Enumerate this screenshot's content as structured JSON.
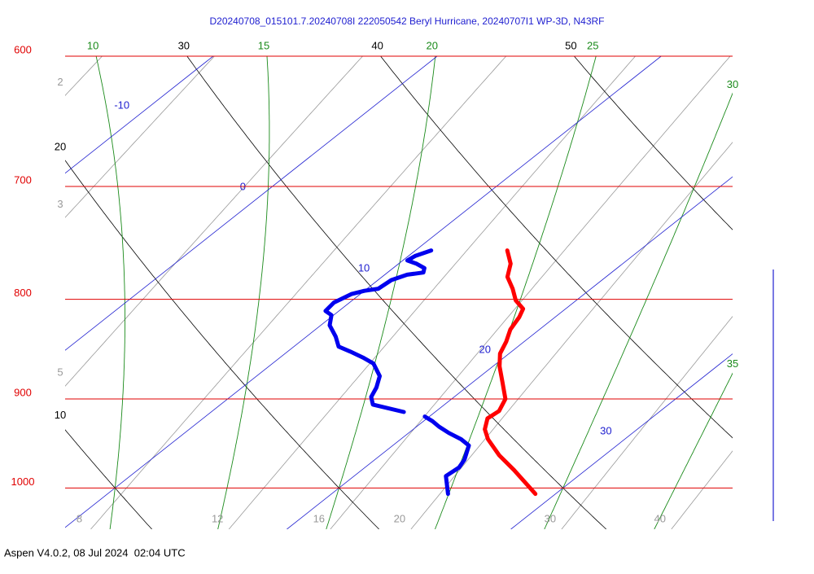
{
  "chart_data": {
    "type": "skewt",
    "title": "D20240708_015101.7.20240708I 222050542 Beryl Hurricane, 20240707I1 WP-3D, N43RF",
    "footer": "Aspen V4.0.2, 08 Jul 2024  02:04 UTC",
    "ylim": [
      1050,
      600
    ],
    "yticks": [
      600,
      700,
      800,
      900,
      1000
    ],
    "log_y": true,
    "isobar_color": "#e00000",
    "xlim": [
      10.1,
      39.9
    ],
    "isotherms": [
      -10,
      0,
      10,
      20,
      30
    ],
    "isotherm_color": "#2020d0",
    "dry_adiabats": [
      10,
      20,
      30,
      40,
      50
    ],
    "dry_adiabat_color": "#000000",
    "moist_adiabats": [
      10,
      15,
      20,
      25,
      30,
      35
    ],
    "moist_adiabat_color": "#1a8a1a",
    "mixing_ratios": [
      2,
      3,
      5,
      8,
      12,
      16,
      20,
      30,
      40
    ],
    "mixing_ratio_color": "#999999",
    "series": [
      {
        "color": "#ff0000",
        "x": [
          29.1,
          26.8,
          25.3,
          23.9,
          23.2,
          22.7,
          22.8,
          22.4,
          21.3,
          20.3,
          19.6,
          19.2,
          18.7,
          18.4,
          18.1,
          17.3,
          16.5,
          15.6,
          15.0,
          14.1
        ],
        "y": [
          1007,
          979,
          962,
          944,
          933,
          921,
          913,
          900,
          882,
          866,
          853,
          841,
          829,
          817,
          809,
          801,
          790,
          779,
          767,
          755
        ]
      },
      {
        "color": "#0000ee",
        "x": [
          25.2,
          24.1,
          24.2,
          24.0,
          23.4,
          22.7,
          21.8,
          21.0,
          20.4,
          19.8,
          null,
          18.6,
          16.8,
          16.3,
          16.0,
          15.5,
          14.5,
          13.7,
          12.8,
          12.0,
          11.3,
          10.4,
          9.9,
          9.4,
          9.3,
          9.6,
          10.0,
          10.5,
          10.6,
          11.0,
          11.6,
          11.4,
          10.8,
          10.2,
          10.3,
          10.7
        ],
        "y": [
          1007,
          986,
          976,
          967,
          951,
          944,
          937,
          930,
          924,
          919,
          null,
          914,
          906,
          898,
          888,
          876,
          863,
          857,
          851,
          846,
          836,
          825,
          815,
          811,
          803,
          795,
          792,
          790,
          782,
          777,
          775,
          771,
          767,
          764,
          760,
          755
        ]
      }
    ]
  }
}
